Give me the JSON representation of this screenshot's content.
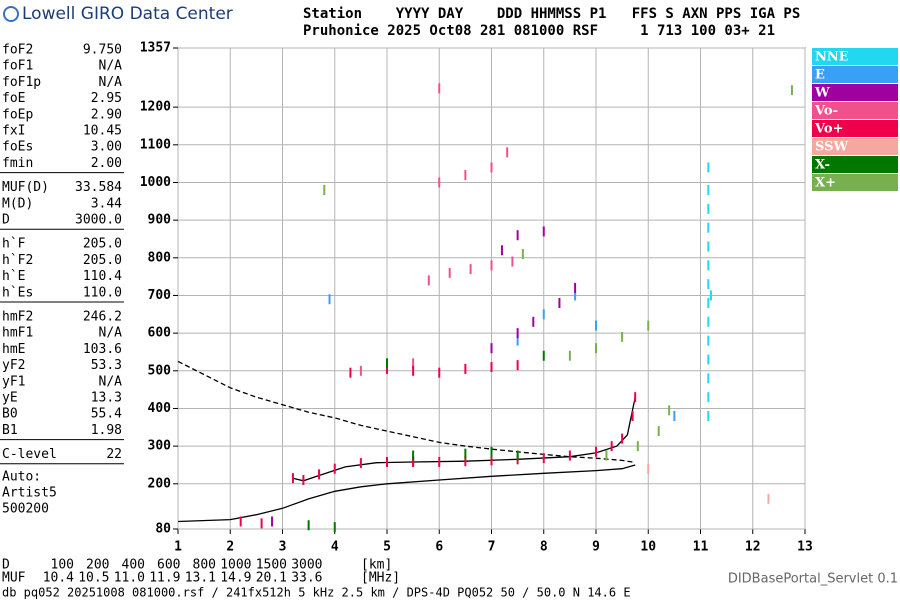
{
  "header": {
    "logo": "Lowell GIRO Data Center",
    "line1": "Station    YYYY DAY    DDD HHMMSS P1   FFS S AXN PPS IGA PS",
    "line2": "Pruhonice 2025 Oct08 281 081000 RSF     1 713 100 03+ 21"
  },
  "parameters": [
    [
      {
        "name": "foF2",
        "value": "9.750"
      },
      {
        "name": "foF1",
        "value": "N/A"
      },
      {
        "name": "foF1p",
        "value": "N/A"
      },
      {
        "name": "foE",
        "value": "2.95"
      },
      {
        "name": "foEp",
        "value": "2.90"
      },
      {
        "name": "fxI",
        "value": "10.45"
      },
      {
        "name": "foEs",
        "value": "3.00"
      },
      {
        "name": "fmin",
        "value": "2.00"
      }
    ],
    [
      {
        "name": "MUF(D)",
        "value": "33.584"
      },
      {
        "name": "M(D)",
        "value": "3.44"
      },
      {
        "name": "D",
        "value": "3000.0"
      }
    ],
    [
      {
        "name": "h`F",
        "value": "205.0"
      },
      {
        "name": "h`F2",
        "value": "205.0"
      },
      {
        "name": "h`E",
        "value": "110.4"
      },
      {
        "name": "h`Es",
        "value": "110.0"
      }
    ],
    [
      {
        "name": "hmF2",
        "value": "246.2"
      },
      {
        "name": "hmF1",
        "value": "N/A"
      },
      {
        "name": "hmE",
        "value": "103.6"
      },
      {
        "name": "yF2",
        "value": "53.3"
      },
      {
        "name": "yF1",
        "value": "N/A"
      },
      {
        "name": "yE",
        "value": "13.3"
      },
      {
        "name": "B0",
        "value": "55.4"
      },
      {
        "name": "B1",
        "value": "1.98"
      }
    ],
    [
      {
        "name": "C-level",
        "value": "22"
      }
    ]
  ],
  "auto": [
    "Auto:",
    "Artist5",
    "500200"
  ],
  "chart_data": {
    "type": "scatter",
    "xlim": [
      1,
      13
    ],
    "xticks": [
      1,
      2,
      3,
      4,
      5,
      6,
      7,
      8,
      9,
      10,
      11,
      12,
      13
    ],
    "ylim": [
      80,
      1357
    ],
    "yticks": [
      80,
      200,
      300,
      400,
      500,
      600,
      700,
      800,
      900,
      1000,
      1100,
      1200,
      1357
    ],
    "grid": true,
    "series": [
      {
        "name": "NNE",
        "color": "#22d8f0",
        "x": [
          11.15,
          11.15,
          11.15,
          11.15,
          11.15,
          11.15,
          11.15,
          11.15,
          11.15,
          11.15,
          11.15,
          11.15,
          11.15,
          11.15,
          11.2
        ],
        "y": [
          380,
          430,
          480,
          530,
          580,
          630,
          680,
          730,
          780,
          830,
          880,
          930,
          980,
          1040,
          700
        ]
      },
      {
        "name": "E",
        "color": "#3aa0f5",
        "x": [
          7.5,
          8.0,
          8.6,
          9.0,
          10.5,
          3.9
        ],
        "y": [
          580,
          650,
          700,
          620,
          380,
          690
        ]
      },
      {
        "name": "W",
        "color": "#a000a0",
        "x": [
          7.0,
          7.5,
          7.8,
          8.3,
          8.6,
          7.2,
          7.5,
          8.0,
          5.5,
          2.8
        ],
        "y": [
          560,
          600,
          630,
          680,
          720,
          820,
          860,
          870,
          260,
          100
        ]
      },
      {
        "name": "Vo-",
        "color": "#f0508c",
        "x": [
          5.8,
          6.2,
          6.6,
          7.0,
          7.4,
          6.0,
          6.5,
          7.0,
          7.3,
          6.0,
          4.5,
          5.5
        ],
        "y": [
          740,
          760,
          770,
          780,
          790,
          1000,
          1020,
          1040,
          1080,
          1250,
          500,
          520
        ]
      },
      {
        "name": "Vo+",
        "color": "#f0004b",
        "x": [
          3.2,
          3.4,
          3.7,
          4.0,
          4.5,
          5.0,
          5.5,
          6.0,
          6.5,
          7.0,
          7.5,
          8.0,
          8.5,
          9.0,
          9.3,
          9.5,
          9.7,
          9.75,
          4.3,
          5.0,
          5.5,
          6.0,
          6.5,
          7.0,
          7.5,
          2.2,
          2.6
        ],
        "y": [
          215,
          210,
          225,
          240,
          255,
          258,
          258,
          258,
          260,
          262,
          265,
          268,
          275,
          285,
          300,
          320,
          380,
          430,
          495,
          505,
          500,
          495,
          505,
          510,
          515,
          100,
          95
        ]
      },
      {
        "name": "SSW",
        "color": "#f4a8a0",
        "x": [
          12.3,
          10.0
        ],
        "y": [
          160,
          240
        ]
      },
      {
        "name": "X-",
        "color": "#007800",
        "x": [
          5.5,
          6.5,
          7.0,
          7.5,
          8.0,
          5.0,
          3.5,
          4.0
        ],
        "y": [
          275,
          280,
          285,
          275,
          540,
          520,
          90,
          85
        ]
      },
      {
        "name": "X+",
        "color": "#78b050",
        "x": [
          8.5,
          9.0,
          9.5,
          10.0,
          9.2,
          9.8,
          10.2,
          10.4,
          7.6,
          12.75,
          3.8
        ],
        "y": [
          540,
          560,
          590,
          620,
          275,
          300,
          340,
          395,
          810,
          1245,
          980
        ]
      }
    ],
    "curves": [
      {
        "style": "dashed",
        "color": "#000000",
        "x": [
          1,
          1.5,
          2,
          2.5,
          3,
          3.5,
          4,
          4.5,
          5,
          5.5,
          6,
          6.5,
          7,
          7.5,
          8,
          8.5,
          9,
          9.5,
          9.7
        ],
        "y": [
          525,
          490,
          455,
          430,
          410,
          390,
          375,
          355,
          340,
          325,
          310,
          300,
          292,
          285,
          278,
          272,
          268,
          262,
          258
        ]
      },
      {
        "style": "solid",
        "color": "#000000",
        "x": [
          1,
          2,
          2.5,
          3,
          3.5,
          4,
          4.5,
          5,
          6,
          7,
          8,
          9,
          9.5,
          9.75
        ],
        "y": [
          100,
          105,
          118,
          135,
          160,
          180,
          192,
          200,
          210,
          220,
          228,
          235,
          240,
          250
        ]
      },
      {
        "style": "solid",
        "color": "#000000",
        "x": [
          3.2,
          3.4,
          3.7,
          4.2,
          4.8,
          5.5,
          6.5,
          7.5,
          8.5,
          9.0,
          9.4,
          9.6,
          9.75
        ],
        "y": [
          215,
          208,
          222,
          245,
          256,
          258,
          260,
          265,
          272,
          282,
          300,
          330,
          430
        ]
      }
    ]
  },
  "footer": {
    "distance_label": "D",
    "distances": [
      "100",
      "200",
      "400",
      "600",
      "800",
      "1000",
      "1500",
      "3000"
    ],
    "distance_unit": "[km]",
    "muf_label": "MUF",
    "mufs": [
      "10.4",
      "10.5",
      "11.0",
      "11.9",
      "13.1",
      "14.9",
      "20.1",
      "33.6"
    ],
    "muf_unit": "[MHz]",
    "servlet": "DIDBasePortal_Servlet 0.1",
    "info": "db pq052 20251008 081000.rsf / 241fx512h 5 kHz 2.5 km / DPS-4D PQ052 50 / 50.0 N 14.6 E"
  }
}
